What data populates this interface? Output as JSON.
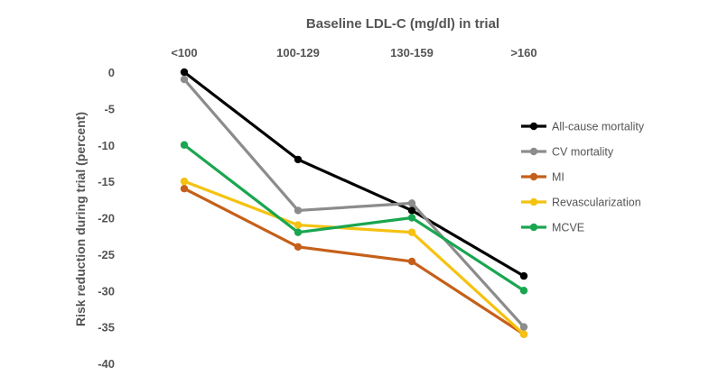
{
  "chart_data": {
    "type": "line",
    "title": "Baseline LDL-C (mg/dl) in trial",
    "xlabel": "",
    "ylabel": "Risk reduction during trial (percent)",
    "categories": [
      "<100",
      "100-129",
      "130-159",
      ">160"
    ],
    "ylim": [
      -40,
      0
    ],
    "yticks": [
      0,
      -5,
      -10,
      -15,
      -20,
      -25,
      -30,
      -35,
      -40
    ],
    "xaxis_position": "top",
    "grid": false,
    "legend_position": "right",
    "series": [
      {
        "name": "All-cause mortality",
        "color": "#000000",
        "values": [
          0,
          -12,
          -19,
          -28
        ]
      },
      {
        "name": "CV mortality",
        "color": "#8c8c8c",
        "values": [
          -1,
          -19,
          -18,
          -35
        ]
      },
      {
        "name": "MI",
        "color": "#c5601a",
        "values": [
          -16,
          -24,
          -26,
          -36
        ]
      },
      {
        "name": "Revascularization",
        "color": "#f5c211",
        "values": [
          -15,
          -21,
          -22,
          -36
        ]
      },
      {
        "name": "MCVE",
        "color": "#1aa650",
        "values": [
          -10,
          -22,
          -20,
          -30
        ]
      }
    ]
  }
}
